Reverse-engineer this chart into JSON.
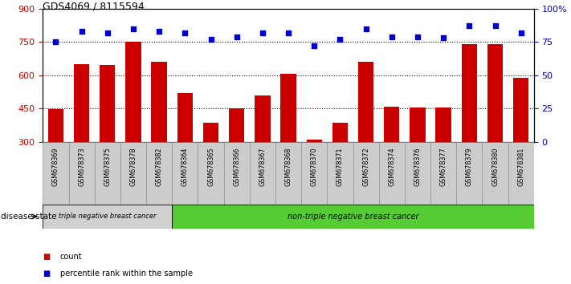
{
  "title": "GDS4069 / 8115594",
  "samples": [
    "GSM678369",
    "GSM678373",
    "GSM678375",
    "GSM678378",
    "GSM678382",
    "GSM678364",
    "GSM678365",
    "GSM678366",
    "GSM678367",
    "GSM678368",
    "GSM678370",
    "GSM678371",
    "GSM678372",
    "GSM678374",
    "GSM678376",
    "GSM678377",
    "GSM678379",
    "GSM678380",
    "GSM678381"
  ],
  "bar_values": [
    448,
    650,
    645,
    750,
    660,
    520,
    385,
    450,
    510,
    605,
    310,
    385,
    660,
    460,
    455,
    455,
    740,
    740,
    590
  ],
  "dot_values_pct": [
    75,
    83,
    82,
    85,
    83,
    82,
    77,
    79,
    82,
    82,
    72,
    77,
    85,
    79,
    79,
    78,
    87,
    87,
    82
  ],
  "ylim_left": [
    300,
    900
  ],
  "ylim_right": [
    0,
    100
  ],
  "yticks_left": [
    300,
    450,
    600,
    750,
    900
  ],
  "yticks_right": [
    0,
    25,
    50,
    75,
    100
  ],
  "grid_vals": [
    450,
    600,
    750
  ],
  "bar_color": "#cc0000",
  "dot_color": "#0000cc",
  "triple_neg_count": 5,
  "label_triple": "triple negative breast cancer",
  "label_non_triple": "non-triple negative breast cancer",
  "legend_count_label": "count",
  "legend_pct_label": "percentile rank within the sample",
  "disease_state_label": "disease state",
  "left_axis_color": "#cc0000",
  "right_axis_color": "#0000cc",
  "band_gray": "#d0d0d0",
  "band_green": "#55cc33",
  "tick_bg": "#cccccc",
  "title_color": "#000000"
}
